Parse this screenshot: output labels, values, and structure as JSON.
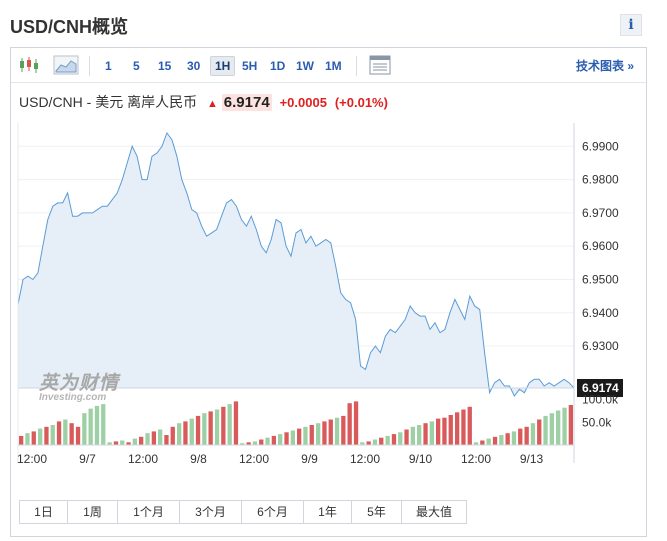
{
  "page": {
    "title": "USD/CNH概览",
    "info_label": "i"
  },
  "toolbar": {
    "intervals": [
      "1",
      "5",
      "15",
      "30",
      "1H",
      "5H",
      "1D",
      "1W",
      "1M"
    ],
    "active_interval": "1H",
    "tech_chart_label": "技术图表 »"
  },
  "quote": {
    "name": "USD/CNH - 美元 离岸人民币",
    "price": "6.9174",
    "change": "+0.0005",
    "change_pct": "(+0.01%)",
    "direction": "up",
    "color_up": "#e02020"
  },
  "watermark": {
    "cn": "英为财情",
    "en": "Investing.com"
  },
  "ranges": [
    "1日",
    "1周",
    "1个月",
    "3个月",
    "6个月",
    "1年",
    "5年",
    "最大值"
  ],
  "chart_data": {
    "type": "area",
    "ylim": [
      6.9174,
      6.9955
    ],
    "y_ticks": [
      "6.9900",
      "6.9800",
      "6.9700",
      "6.9600",
      "6.9500",
      "6.9400",
      "6.9300"
    ],
    "last_price_label": "6.9174",
    "x_labels": [
      "12:00",
      "9/7",
      "12:00",
      "9/8",
      "12:00",
      "9/9",
      "12:00",
      "9/10",
      "12:00",
      "9/13"
    ],
    "volume_ticks": [
      "100.0k",
      "50.0k"
    ],
    "price_series": [
      6.9425,
      6.95,
      6.951,
      6.95,
      6.952,
      6.96,
      6.968,
      6.972,
      6.973,
      6.973,
      6.976,
      6.969,
      6.969,
      6.97,
      6.97,
      6.97,
      6.971,
      6.972,
      6.972,
      6.974,
      6.976,
      6.98,
      6.985,
      6.99,
      6.987,
      6.98,
      6.98,
      6.987,
      6.988,
      6.99,
      6.994,
      6.992,
      6.987,
      6.98,
      6.976,
      6.971,
      6.97,
      6.966,
      6.963,
      6.964,
      6.965,
      6.969,
      6.973,
      6.974,
      6.972,
      6.968,
      6.966,
      6.969,
      6.965,
      6.96,
      6.958,
      6.962,
      6.968,
      6.967,
      6.96,
      6.957,
      6.964,
      6.965,
      6.961,
      6.963,
      6.96,
      6.961,
      6.962,
      6.961,
      6.954,
      6.946,
      6.944,
      6.943,
      6.938,
      6.924,
      6.923,
      6.928,
      6.93,
      6.928,
      6.933,
      6.935,
      6.934,
      6.936,
      6.938,
      6.942,
      6.94,
      6.939,
      6.939,
      6.935,
      6.937,
      6.934,
      6.935,
      6.94,
      6.944,
      6.941,
      6.938,
      6.945,
      6.942,
      6.941,
      6.928,
      6.916,
      6.919,
      6.92,
      6.918,
      6.918,
      6.915,
      6.917,
      6.916,
      6.919,
      6.92,
      6.92,
      6.918,
      6.919,
      6.918,
      6.919,
      6.92,
      6.919,
      6.9174
    ],
    "volume_series": [
      20,
      26,
      30,
      36,
      40,
      44,
      52,
      56,
      48,
      40,
      70,
      80,
      86,
      90,
      6,
      8,
      10,
      6,
      14,
      18,
      26,
      30,
      34,
      22,
      40,
      48,
      52,
      58,
      64,
      70,
      74,
      78,
      84,
      90,
      96,
      4,
      6,
      8,
      12,
      16,
      20,
      24,
      28,
      32,
      36,
      40,
      44,
      48,
      52,
      56,
      60,
      64,
      92,
      96,
      6,
      8,
      12,
      16,
      20,
      24,
      28,
      34,
      40,
      44,
      48,
      52,
      58,
      60,
      66,
      72,
      78,
      84,
      6,
      10,
      14,
      18,
      22,
      26,
      30,
      36,
      40,
      48,
      56,
      64,
      70,
      76,
      82,
      88
    ],
    "volume_up": [
      false,
      true,
      false,
      true,
      false,
      true,
      false,
      true,
      false,
      false,
      true,
      true,
      true,
      true,
      true,
      false,
      true,
      false,
      true,
      false,
      true,
      false,
      true,
      false,
      false,
      true,
      false,
      true,
      false,
      true,
      false,
      true,
      false,
      true,
      false,
      true,
      false,
      true,
      false,
      true,
      false,
      true,
      false,
      true,
      false,
      true,
      false,
      true,
      false,
      false,
      true,
      false,
      false,
      false,
      true,
      false,
      true,
      false,
      true,
      false,
      true,
      false,
      true,
      true,
      false,
      true,
      false,
      false,
      false,
      false,
      false,
      false,
      true,
      false,
      true,
      false,
      true,
      false,
      true,
      false,
      false,
      true,
      false,
      true,
      true,
      true,
      true,
      false
    ],
    "color_line": "#5b9bd5",
    "color_fill": "#e6eff8",
    "color_vol_up": "#9ed0a6",
    "color_vol_down": "#d95a5a"
  }
}
